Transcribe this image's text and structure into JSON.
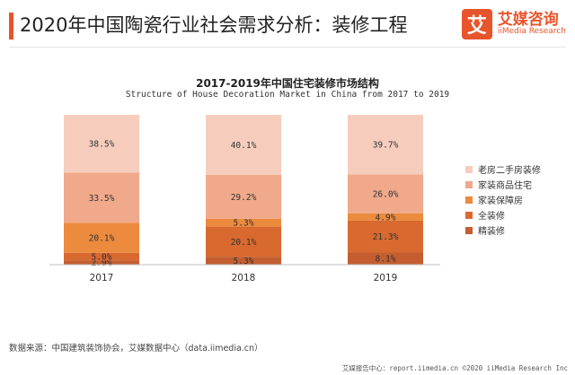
{
  "header": {
    "title": "2020年中国陶瓷行业社会需求分析：装修工程",
    "brand_logo_char": "艾",
    "brand_name": "艾媒咨询",
    "brand_sub": "iiMedia Research"
  },
  "chart_data": {
    "type": "bar",
    "stacked": true,
    "title": "2017-2019年中国住宅装修市场结构",
    "subtitle": "Structure of House Decoration Market in China from 2017 to 2019",
    "categories": [
      "2017",
      "2018",
      "2019"
    ],
    "series": [
      {
        "name": "精装修",
        "values": [
          2.9,
          5.3,
          8.1
        ],
        "labels": [
          "2.9%",
          "5.3%",
          "8.1%"
        ],
        "color": "#c45e30"
      },
      {
        "name": "全装修",
        "values": [
          5.0,
          20.1,
          21.3
        ],
        "labels": [
          "5.0%",
          "20.1%",
          "21.3%"
        ],
        "color": "#d8692f"
      },
      {
        "name": "家装保障房",
        "values": [
          20.1,
          5.3,
          4.9
        ],
        "labels": [
          "20.1%",
          "5.3%",
          "4.9%"
        ],
        "color": "#ec8a3e"
      },
      {
        "name": "家装商品住宅",
        "values": [
          33.5,
          29.2,
          26.0
        ],
        "labels": [
          "33.5%",
          "29.2%",
          "26.0%"
        ],
        "color": "#f0a98a"
      },
      {
        "name": "老房二手房装修",
        "values": [
          38.5,
          40.1,
          39.7
        ],
        "labels": [
          "38.5%",
          "40.1%",
          "39.7%"
        ],
        "color": "#f6cdbd"
      }
    ],
    "legend_position": "right",
    "grid": false
  },
  "legend_order": [
    "老房二手房装修",
    "家装商品住宅",
    "家装保障房",
    "全装修",
    "精装修"
  ],
  "source": "数据来源：中国建筑装饰协会，艾媒数据中心（data.iimedia.cn）",
  "footer": "艾媒报告中心：report.iimedia.cn ©2020  iiMedia Research Inc"
}
